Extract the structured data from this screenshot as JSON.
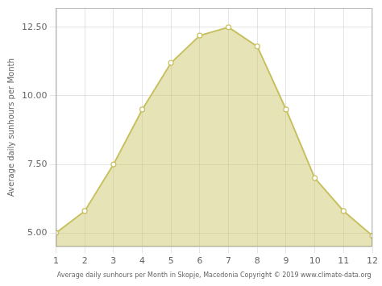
{
  "chart_data": {
    "type": "area",
    "x": [
      1,
      2,
      3,
      4,
      5,
      6,
      7,
      8,
      9,
      10,
      11,
      12
    ],
    "values": [
      5.0,
      5.8,
      7.5,
      9.5,
      11.2,
      12.2,
      12.5,
      11.8,
      9.5,
      7.0,
      5.8,
      4.9
    ],
    "color": "#c8c060",
    "marker": "circle",
    "xlabel": "Average daily sunhours per Month in Skopje, Macedonia Copyright © 2019 www.climate-data.org",
    "ylabel": "Average daily sunhours per Month",
    "xlim": [
      1,
      12
    ],
    "ylim": [
      4.5,
      13.2
    ],
    "xticks": [
      1,
      2,
      3,
      4,
      5,
      6,
      7,
      8,
      9,
      10,
      11,
      12
    ],
    "yticks": [
      {
        "value": 5.0,
        "label": "5.00"
      },
      {
        "value": 7.5,
        "label": "7.50"
      },
      {
        "value": 10.0,
        "label": "10.00"
      },
      {
        "value": 12.5,
        "label": "12.50"
      }
    ],
    "grid": true
  }
}
